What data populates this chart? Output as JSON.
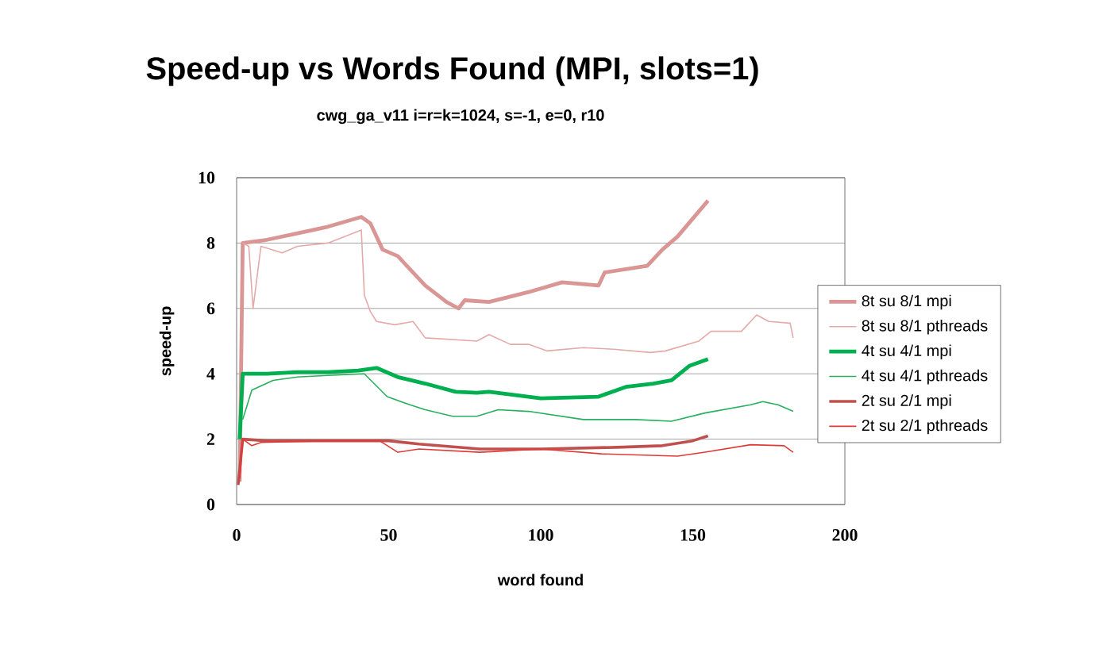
{
  "chart_data": {
    "type": "line",
    "title": "Speed-up vs Words Found (MPI, slots=1)",
    "subtitle": "cwg_ga_v11  i=r=k=1024, s=-1, e=0, r10",
    "xlabel": "word found",
    "ylabel": "speed-up",
    "xlim": [
      0,
      200
    ],
    "xticks": [
      0,
      50,
      100,
      150,
      200
    ],
    "ylim": [
      0,
      10
    ],
    "yticks": [
      0,
      2,
      4,
      6,
      8,
      10
    ],
    "grid": "y",
    "legend": "right",
    "marker": "none",
    "line_style": "solid",
    "series": [
      {
        "name": "8t su 8/1 mpi",
        "color": "#d99694",
        "x": [
          1,
          2,
          10,
          20,
          30,
          41,
          44,
          48,
          53,
          62,
          69,
          73,
          75,
          83,
          96,
          107,
          119,
          121,
          135,
          140,
          145,
          155
        ],
        "values": [
          0.7,
          8,
          8.1,
          8.3,
          8.5,
          8.8,
          8.6,
          7.8,
          7.6,
          6.7,
          6.2,
          6.0,
          6.25,
          6.2,
          6.5,
          6.8,
          6.7,
          7.1,
          7.3,
          7.8,
          8.2,
          9.3
        ]
      },
      {
        "name": "8t su 8/1 pthreads",
        "color": "#e3aaa8",
        "x": [
          2,
          4,
          5.4,
          8,
          15,
          20,
          30,
          41,
          42,
          44,
          46,
          52,
          58,
          62,
          79,
          83,
          90,
          96,
          102,
          114,
          124,
          136,
          141,
          152,
          156,
          166,
          171,
          175,
          182,
          183
        ],
        "values": [
          8,
          7.9,
          6,
          7.9,
          7.7,
          7.9,
          8.0,
          8.4,
          6.4,
          5.9,
          5.6,
          5.5,
          5.6,
          5.1,
          5.0,
          5.2,
          4.9,
          4.9,
          4.7,
          4.8,
          4.75,
          4.65,
          4.7,
          5.0,
          5.3,
          5.3,
          5.8,
          5.6,
          5.55,
          5.1
        ]
      },
      {
        "name": "4t su 4/1 mpi",
        "color": "#00b050",
        "x": [
          1,
          2,
          10,
          20,
          30,
          40,
          46,
          53,
          62,
          72,
          79,
          83,
          100,
          119,
          128,
          137,
          143,
          149,
          155
        ],
        "values": [
          2.0,
          4.0,
          4.0,
          4.05,
          4.05,
          4.1,
          4.18,
          3.9,
          3.7,
          3.45,
          3.42,
          3.45,
          3.25,
          3.3,
          3.6,
          3.7,
          3.8,
          4.25,
          4.45
        ]
      },
      {
        "name": "4t su 4/1 pthreads",
        "color": "#26b05e",
        "x": [
          2,
          5,
          12,
          20,
          30,
          42,
          49.5,
          57,
          62,
          71,
          79,
          86,
          96,
          114,
          131,
          143,
          154,
          169,
          173,
          178,
          183
        ],
        "values": [
          2.6,
          3.5,
          3.8,
          3.9,
          3.95,
          4.0,
          3.3,
          3.05,
          2.9,
          2.7,
          2.7,
          2.9,
          2.85,
          2.6,
          2.6,
          2.55,
          2.8,
          3.05,
          3.15,
          3.05,
          2.85
        ]
      },
      {
        "name": "2t  su 2/1 mpi",
        "color": "#c0504d",
        "x": [
          0.5,
          2,
          10,
          30,
          50,
          60,
          80,
          100,
          125,
          140,
          150,
          155
        ],
        "values": [
          0.6,
          2.0,
          1.95,
          1.95,
          1.95,
          1.85,
          1.7,
          1.7,
          1.75,
          1.8,
          1.95,
          2.1
        ]
      },
      {
        "name": "2t  su 2/1 pthreads",
        "color": "#e03a36",
        "x": [
          1,
          2,
          5,
          8,
          30,
          47,
          53,
          60,
          80,
          100,
          120,
          145,
          154,
          169,
          180,
          183
        ],
        "values": [
          0.8,
          2.0,
          1.8,
          1.9,
          1.95,
          1.95,
          1.6,
          1.7,
          1.6,
          1.7,
          1.55,
          1.48,
          1.6,
          1.83,
          1.8,
          1.6
        ]
      }
    ]
  }
}
